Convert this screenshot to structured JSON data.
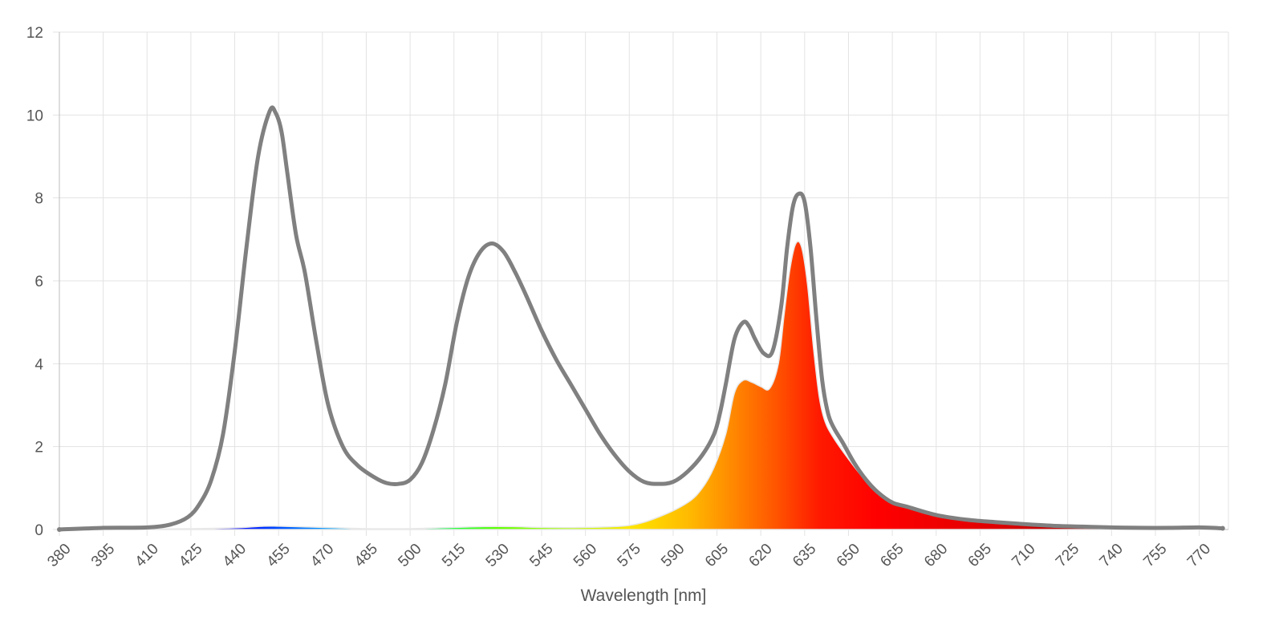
{
  "chart_data": {
    "type": "area",
    "title": "",
    "xlabel": "Wavelength [nm]",
    "ylabel": "",
    "xlim": [
      380,
      780
    ],
    "ylim": [
      0,
      12
    ],
    "grid": true,
    "legend": "none",
    "x_ticks": [
      380,
      395,
      410,
      425,
      440,
      455,
      470,
      485,
      500,
      515,
      530,
      545,
      560,
      575,
      590,
      605,
      620,
      635,
      650,
      665,
      680,
      695,
      710,
      725,
      740,
      755,
      770
    ],
    "y_ticks": [
      0,
      2,
      4,
      6,
      8,
      10,
      12
    ],
    "series": [
      {
        "kind": "line",
        "color": "#808080",
        "x": [
          380,
          395,
          410,
          418,
          424,
          428,
          432,
          436,
          440,
          444,
          448,
          452,
          454,
          456,
          458,
          461,
          464,
          468,
          472,
          477,
          482,
          488,
          492,
          496,
          500,
          504,
          508,
          512,
          516,
          520,
          524,
          528,
          532,
          536,
          540,
          545,
          550,
          555,
          560,
          565,
          570,
          575,
          580,
          585,
          590,
          595,
          600,
          604,
          606,
          608,
          611,
          614,
          616,
          618,
          621,
          624,
          627,
          629,
          631,
          633,
          635,
          637,
          639,
          641,
          643,
          645,
          648,
          652,
          656,
          660,
          665,
          670,
          680,
          690,
          700,
          710,
          720,
          730,
          740,
          750,
          760,
          770,
          778
        ],
        "y": [
          0.0,
          0.04,
          0.05,
          0.12,
          0.3,
          0.62,
          1.2,
          2.3,
          4.3,
          6.8,
          9.0,
          10.1,
          10.05,
          9.6,
          8.6,
          7.1,
          6.2,
          4.5,
          3.0,
          2.0,
          1.55,
          1.25,
          1.12,
          1.1,
          1.2,
          1.6,
          2.4,
          3.5,
          5.0,
          6.1,
          6.7,
          6.9,
          6.7,
          6.2,
          5.6,
          4.8,
          4.1,
          3.5,
          2.9,
          2.3,
          1.8,
          1.4,
          1.15,
          1.1,
          1.15,
          1.4,
          1.8,
          2.3,
          2.8,
          3.5,
          4.6,
          5.0,
          4.9,
          4.6,
          4.25,
          4.3,
          5.4,
          6.8,
          7.8,
          8.1,
          7.9,
          6.8,
          5.1,
          3.6,
          2.8,
          2.45,
          2.1,
          1.6,
          1.2,
          0.9,
          0.65,
          0.55,
          0.35,
          0.24,
          0.18,
          0.13,
          0.09,
          0.07,
          0.05,
          0.04,
          0.04,
          0.05,
          0.03
        ]
      },
      {
        "kind": "spectrum-area",
        "x": [
          380,
          395,
          410,
          425,
          440,
          450,
          455,
          465,
          475,
          485,
          500,
          515,
          525,
          535,
          545,
          560,
          575,
          585,
          595,
          600,
          604,
          608,
          611,
          614,
          617,
          620,
          623,
          626,
          628,
          630,
          632,
          634,
          636,
          638,
          640,
          642,
          645,
          650,
          655,
          660,
          665,
          670,
          680,
          690,
          700,
          710,
          720,
          730,
          740,
          750,
          760,
          770,
          778
        ],
        "y": [
          0.0,
          0.01,
          0.01,
          0.02,
          0.04,
          0.08,
          0.08,
          0.06,
          0.04,
          0.02,
          0.02,
          0.05,
          0.07,
          0.07,
          0.05,
          0.05,
          0.1,
          0.3,
          0.65,
          1.0,
          1.5,
          2.3,
          3.3,
          3.6,
          3.55,
          3.45,
          3.4,
          4.0,
          5.2,
          6.3,
          6.9,
          6.8,
          5.9,
          4.4,
          3.2,
          2.6,
          2.2,
          1.7,
          1.25,
          0.9,
          0.65,
          0.55,
          0.35,
          0.24,
          0.18,
          0.13,
          0.09,
          0.07,
          0.05,
          0.04,
          0.04,
          0.05,
          0.03
        ]
      }
    ]
  }
}
